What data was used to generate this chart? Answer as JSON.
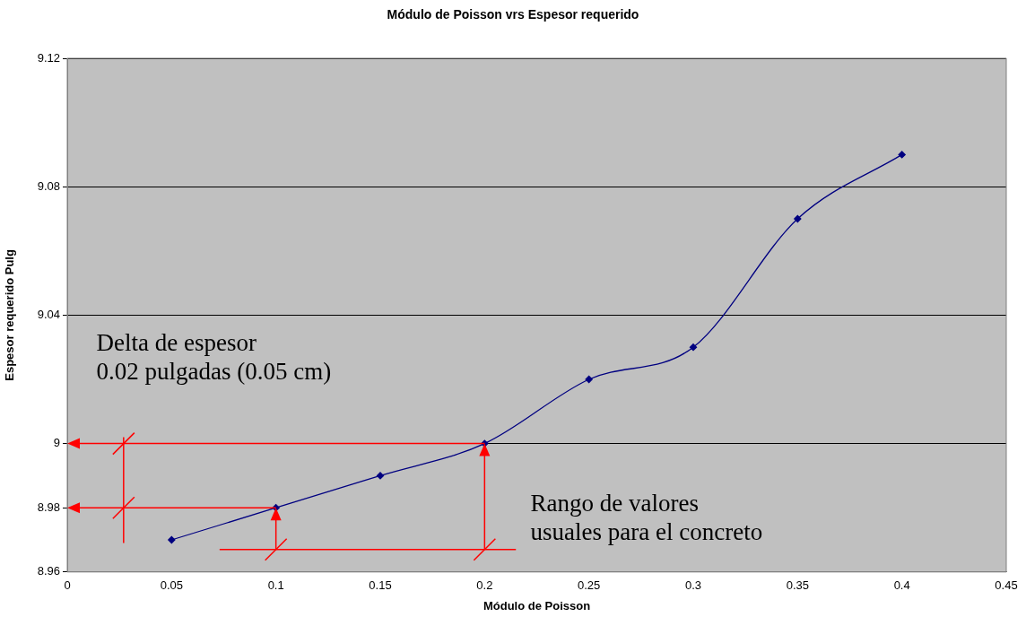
{
  "chart_data": {
    "type": "line",
    "title": "Módulo de Poisson vrs Espesor requerido",
    "xlabel": "Módulo de Poisson",
    "ylabel": "Espesor requerido Pulg",
    "x": [
      0.05,
      0.1,
      0.15,
      0.2,
      0.25,
      0.3,
      0.35,
      0.4
    ],
    "series": [
      {
        "color": "#000080",
        "values": [
          8.97,
          8.98,
          8.99,
          9.0,
          9.02,
          9.03,
          9.07,
          9.09
        ]
      }
    ],
    "xlim": [
      0,
      0.45
    ],
    "xticks": [
      0,
      0.05,
      0.1,
      0.15,
      0.2,
      0.25,
      0.3,
      0.35,
      0.4,
      0.45
    ],
    "ylim": [
      8.96,
      9.12
    ],
    "yticks": [
      8.96,
      {
        "value": 8.98,
        "label": "8.98"
      },
      9,
      9.04,
      9.08,
      9.12
    ],
    "grid": "y",
    "legend": false,
    "marker": "diamond",
    "line_style": "solid",
    "annotations": [
      "Delta de espesor\n0.02 pulgadas (0.05 cm)",
      "Rango de valores\nusuales para el concreto"
    ]
  }
}
